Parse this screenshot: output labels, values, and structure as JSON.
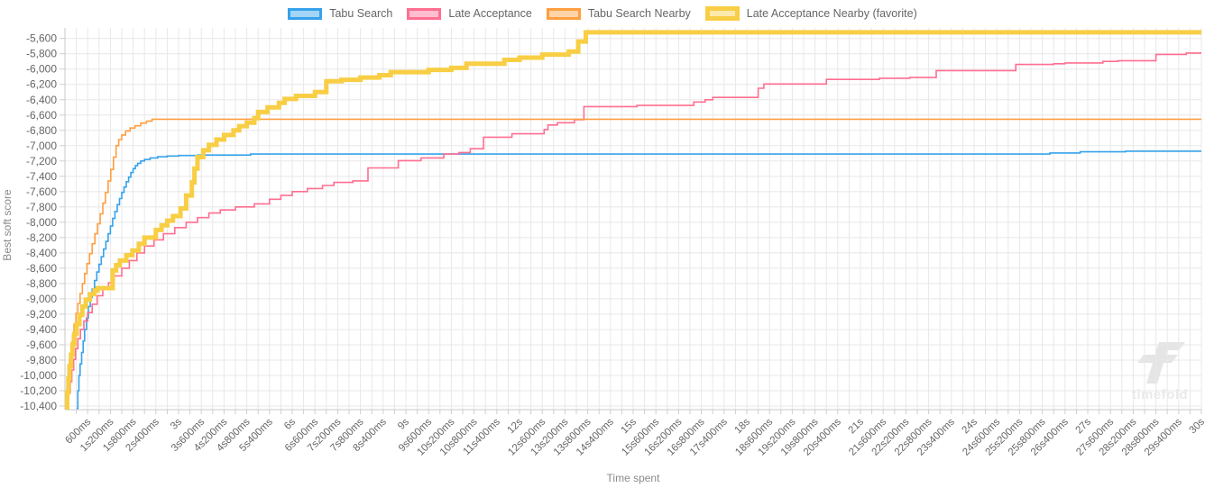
{
  "legend": {
    "items": [
      {
        "label": "Tabu Search",
        "color": "#36a2eb",
        "favorite": false
      },
      {
        "label": "Late Acceptance",
        "color": "#ff6e91",
        "favorite": false
      },
      {
        "label": "Tabu Search Nearby",
        "color": "#ff9f40",
        "favorite": false
      },
      {
        "label": "Late Acceptance Nearby (favorite)",
        "color": "#f8ce44",
        "favorite": true
      }
    ]
  },
  "watermark": {
    "text": "timefold",
    "logo_icon": "timefold-logo-icon",
    "color": "#e9e9e9"
  },
  "chart_data": {
    "type": "line",
    "stepped": true,
    "title": "",
    "xlabel": "Time spent",
    "ylabel": "Best soft score",
    "xlim_seconds": [
      0,
      30
    ],
    "ylim": [
      -10400,
      -5600
    ],
    "grid": true,
    "legend_position": "top",
    "x_label_interval_s": 0.6,
    "x_grid_interval_s": 0.3,
    "y_tick_interval": 200,
    "x_tick_labels": [
      "600ms",
      "1s200ms",
      "1s800ms",
      "2s400ms",
      "3s",
      "3s600ms",
      "4s200ms",
      "4s800ms",
      "5s400ms",
      "6s",
      "6s600ms",
      "7s200ms",
      "7s800ms",
      "8s400ms",
      "9s",
      "9s600ms",
      "10s200ms",
      "10s800ms",
      "11s400ms",
      "12s",
      "12s600ms",
      "13s200ms",
      "13s800ms",
      "14s400ms",
      "15s",
      "15s600ms",
      "16s200ms",
      "16s800ms",
      "17s400ms",
      "18s",
      "18s600ms",
      "19s200ms",
      "19s800ms",
      "20s400ms",
      "21s",
      "21s600ms",
      "22s200ms",
      "22s800ms",
      "23s400ms",
      "24s",
      "24s600ms",
      "25s200ms",
      "25s800ms",
      "26s400ms",
      "27s",
      "27s600ms",
      "28s200ms",
      "28s800ms",
      "29s400ms",
      "30s"
    ],
    "y_tick_labels": [
      "-5,600",
      "-5,800",
      "-6,000",
      "-6,200",
      "-6,400",
      "-6,600",
      "-6,800",
      "-7,000",
      "-7,200",
      "-7,400",
      "-7,600",
      "-7,800",
      "-8,000",
      "-8,200",
      "-8,400",
      "-8,600",
      "-8,800",
      "-9,000",
      "-9,200",
      "-9,400",
      "-9,600",
      "-9,800",
      "-10,000",
      "-10,200",
      "-10,400"
    ],
    "series": [
      {
        "name": "Tabu Search",
        "color": "#36a2eb",
        "line_width": 1.6,
        "final_score": -7072,
        "points": [
          [
            0.31,
            -10430
          ],
          [
            0.34,
            -10200
          ],
          [
            0.37,
            -10000
          ],
          [
            0.4,
            -9850
          ],
          [
            0.44,
            -9700
          ],
          [
            0.48,
            -9550
          ],
          [
            0.52,
            -9400
          ],
          [
            0.57,
            -9250
          ],
          [
            0.62,
            -9100
          ],
          [
            0.67,
            -8980
          ],
          [
            0.72,
            -8870
          ],
          [
            0.78,
            -8760
          ],
          [
            0.84,
            -8650
          ],
          [
            0.9,
            -8550
          ],
          [
            0.96,
            -8450
          ],
          [
            1.02,
            -8350
          ],
          [
            1.08,
            -8250
          ],
          [
            1.14,
            -8150
          ],
          [
            1.2,
            -8050
          ],
          [
            1.26,
            -7950
          ],
          [
            1.32,
            -7860
          ],
          [
            1.38,
            -7770
          ],
          [
            1.44,
            -7690
          ],
          [
            1.5,
            -7610
          ],
          [
            1.56,
            -7540
          ],
          [
            1.62,
            -7470
          ],
          [
            1.68,
            -7410
          ],
          [
            1.74,
            -7350
          ],
          [
            1.8,
            -7300
          ],
          [
            1.86,
            -7260
          ],
          [
            1.92,
            -7230
          ],
          [
            2.0,
            -7200
          ],
          [
            2.1,
            -7180
          ],
          [
            2.25,
            -7160
          ],
          [
            2.45,
            -7145
          ],
          [
            2.7,
            -7135
          ],
          [
            3.0,
            -7128
          ],
          [
            3.5,
            -7122
          ],
          [
            4.9,
            -7110
          ],
          [
            26.0,
            -7095
          ],
          [
            26.8,
            -7080
          ],
          [
            28.0,
            -7072
          ],
          [
            30,
            -7072
          ]
        ]
      },
      {
        "name": "Late Acceptance",
        "color": "#ff6e91",
        "line_width": 1.6,
        "final_score": -5790,
        "points": [
          [
            0.06,
            -10440
          ],
          [
            0.1,
            -10230
          ],
          [
            0.14,
            -10080
          ],
          [
            0.18,
            -9930
          ],
          [
            0.23,
            -9790
          ],
          [
            0.28,
            -9650
          ],
          [
            0.34,
            -9520
          ],
          [
            0.41,
            -9400
          ],
          [
            0.5,
            -9290
          ],
          [
            0.6,
            -9180
          ],
          [
            0.72,
            -9070
          ],
          [
            0.85,
            -8960
          ],
          [
            1.0,
            -8870
          ],
          [
            1.15,
            -8790
          ],
          [
            1.3,
            -8700
          ],
          [
            1.5,
            -8600
          ],
          [
            1.7,
            -8500
          ],
          [
            1.9,
            -8400
          ],
          [
            2.1,
            -8310
          ],
          [
            2.35,
            -8230
          ],
          [
            2.6,
            -8150
          ],
          [
            2.9,
            -8070
          ],
          [
            3.2,
            -8000
          ],
          [
            3.5,
            -7940
          ],
          [
            3.8,
            -7880
          ],
          [
            4.1,
            -7840
          ],
          [
            4.5,
            -7800
          ],
          [
            5.0,
            -7760
          ],
          [
            5.4,
            -7700
          ],
          [
            5.7,
            -7650
          ],
          [
            6.0,
            -7600
          ],
          [
            6.4,
            -7560
          ],
          [
            6.8,
            -7520
          ],
          [
            7.1,
            -7480
          ],
          [
            7.6,
            -7460
          ],
          [
            8.0,
            -7290
          ],
          [
            8.8,
            -7195
          ],
          [
            9.4,
            -7160
          ],
          [
            10.0,
            -7110
          ],
          [
            10.4,
            -7090
          ],
          [
            10.7,
            -7040
          ],
          [
            11.05,
            -6890
          ],
          [
            11.8,
            -6845
          ],
          [
            12.65,
            -6790
          ],
          [
            12.75,
            -6730
          ],
          [
            13.0,
            -6700
          ],
          [
            13.45,
            -6660
          ],
          [
            13.7,
            -6490
          ],
          [
            15.1,
            -6475
          ],
          [
            16.6,
            -6430
          ],
          [
            16.9,
            -6400
          ],
          [
            17.1,
            -6370
          ],
          [
            18.3,
            -6250
          ],
          [
            18.45,
            -6195
          ],
          [
            20.1,
            -6135
          ],
          [
            21.5,
            -6120
          ],
          [
            22.3,
            -6110
          ],
          [
            23.0,
            -6020
          ],
          [
            25.1,
            -5940
          ],
          [
            26.1,
            -5930
          ],
          [
            26.4,
            -5920
          ],
          [
            27.4,
            -5900
          ],
          [
            27.8,
            -5890
          ],
          [
            28.8,
            -5808
          ],
          [
            29.6,
            -5790
          ],
          [
            30,
            -5790
          ]
        ]
      },
      {
        "name": "Tabu Search Nearby",
        "color": "#ff9f40",
        "line_width": 1.6,
        "final_score": -6655,
        "points": [
          [
            0.03,
            -10440
          ],
          [
            0.06,
            -10150
          ],
          [
            0.09,
            -9950
          ],
          [
            0.12,
            -9780
          ],
          [
            0.16,
            -9620
          ],
          [
            0.2,
            -9470
          ],
          [
            0.24,
            -9330
          ],
          [
            0.29,
            -9190
          ],
          [
            0.34,
            -9060
          ],
          [
            0.4,
            -8930
          ],
          [
            0.46,
            -8800
          ],
          [
            0.52,
            -8670
          ],
          [
            0.58,
            -8540
          ],
          [
            0.65,
            -8410
          ],
          [
            0.72,
            -8280
          ],
          [
            0.79,
            -8150
          ],
          [
            0.86,
            -8020
          ],
          [
            0.93,
            -7890
          ],
          [
            1.0,
            -7750
          ],
          [
            1.07,
            -7610
          ],
          [
            1.14,
            -7460
          ],
          [
            1.21,
            -7310
          ],
          [
            1.28,
            -7150
          ],
          [
            1.35,
            -7000
          ],
          [
            1.42,
            -6920
          ],
          [
            1.5,
            -6860
          ],
          [
            1.6,
            -6810
          ],
          [
            1.72,
            -6770
          ],
          [
            1.85,
            -6740
          ],
          [
            2.0,
            -6705
          ],
          [
            2.15,
            -6680
          ],
          [
            2.3,
            -6655
          ],
          [
            30,
            -6655
          ]
        ]
      },
      {
        "name": "Late Acceptance Nearby (favorite)",
        "color": "#f8ce44",
        "line_width": 5,
        "final_score": -5520,
        "points": [
          [
            0.04,
            -10440
          ],
          [
            0.06,
            -10220
          ],
          [
            0.09,
            -10040
          ],
          [
            0.12,
            -9880
          ],
          [
            0.16,
            -9730
          ],
          [
            0.2,
            -9590
          ],
          [
            0.25,
            -9460
          ],
          [
            0.31,
            -9330
          ],
          [
            0.38,
            -9210
          ],
          [
            0.46,
            -9100
          ],
          [
            0.55,
            -9010
          ],
          [
            0.66,
            -8940
          ],
          [
            0.78,
            -8890
          ],
          [
            0.86,
            -8860
          ],
          [
            1.26,
            -8630
          ],
          [
            1.35,
            -8560
          ],
          [
            1.45,
            -8500
          ],
          [
            1.62,
            -8430
          ],
          [
            1.78,
            -8370
          ],
          [
            1.95,
            -8280
          ],
          [
            2.1,
            -8200
          ],
          [
            2.4,
            -8100
          ],
          [
            2.55,
            -8040
          ],
          [
            2.7,
            -7980
          ],
          [
            2.85,
            -7920
          ],
          [
            3.05,
            -7820
          ],
          [
            3.2,
            -7650
          ],
          [
            3.35,
            -7480
          ],
          [
            3.42,
            -7300
          ],
          [
            3.5,
            -7150
          ],
          [
            3.65,
            -7060
          ],
          [
            3.8,
            -6990
          ],
          [
            4.0,
            -6920
          ],
          [
            4.2,
            -6860
          ],
          [
            4.45,
            -6800
          ],
          [
            4.6,
            -6745
          ],
          [
            4.8,
            -6700
          ],
          [
            5.0,
            -6640
          ],
          [
            5.1,
            -6560
          ],
          [
            5.35,
            -6500
          ],
          [
            5.65,
            -6440
          ],
          [
            5.8,
            -6390
          ],
          [
            6.1,
            -6350
          ],
          [
            6.6,
            -6300
          ],
          [
            6.9,
            -6160
          ],
          [
            7.3,
            -6140
          ],
          [
            7.8,
            -6110
          ],
          [
            8.3,
            -6080
          ],
          [
            8.6,
            -6040
          ],
          [
            9.6,
            -6010
          ],
          [
            10.2,
            -5985
          ],
          [
            10.6,
            -5930
          ],
          [
            11.6,
            -5880
          ],
          [
            12.0,
            -5850
          ],
          [
            12.6,
            -5810
          ],
          [
            13.3,
            -5770
          ],
          [
            13.55,
            -5640
          ],
          [
            13.75,
            -5520
          ],
          [
            30,
            -5520
          ]
        ]
      }
    ]
  }
}
